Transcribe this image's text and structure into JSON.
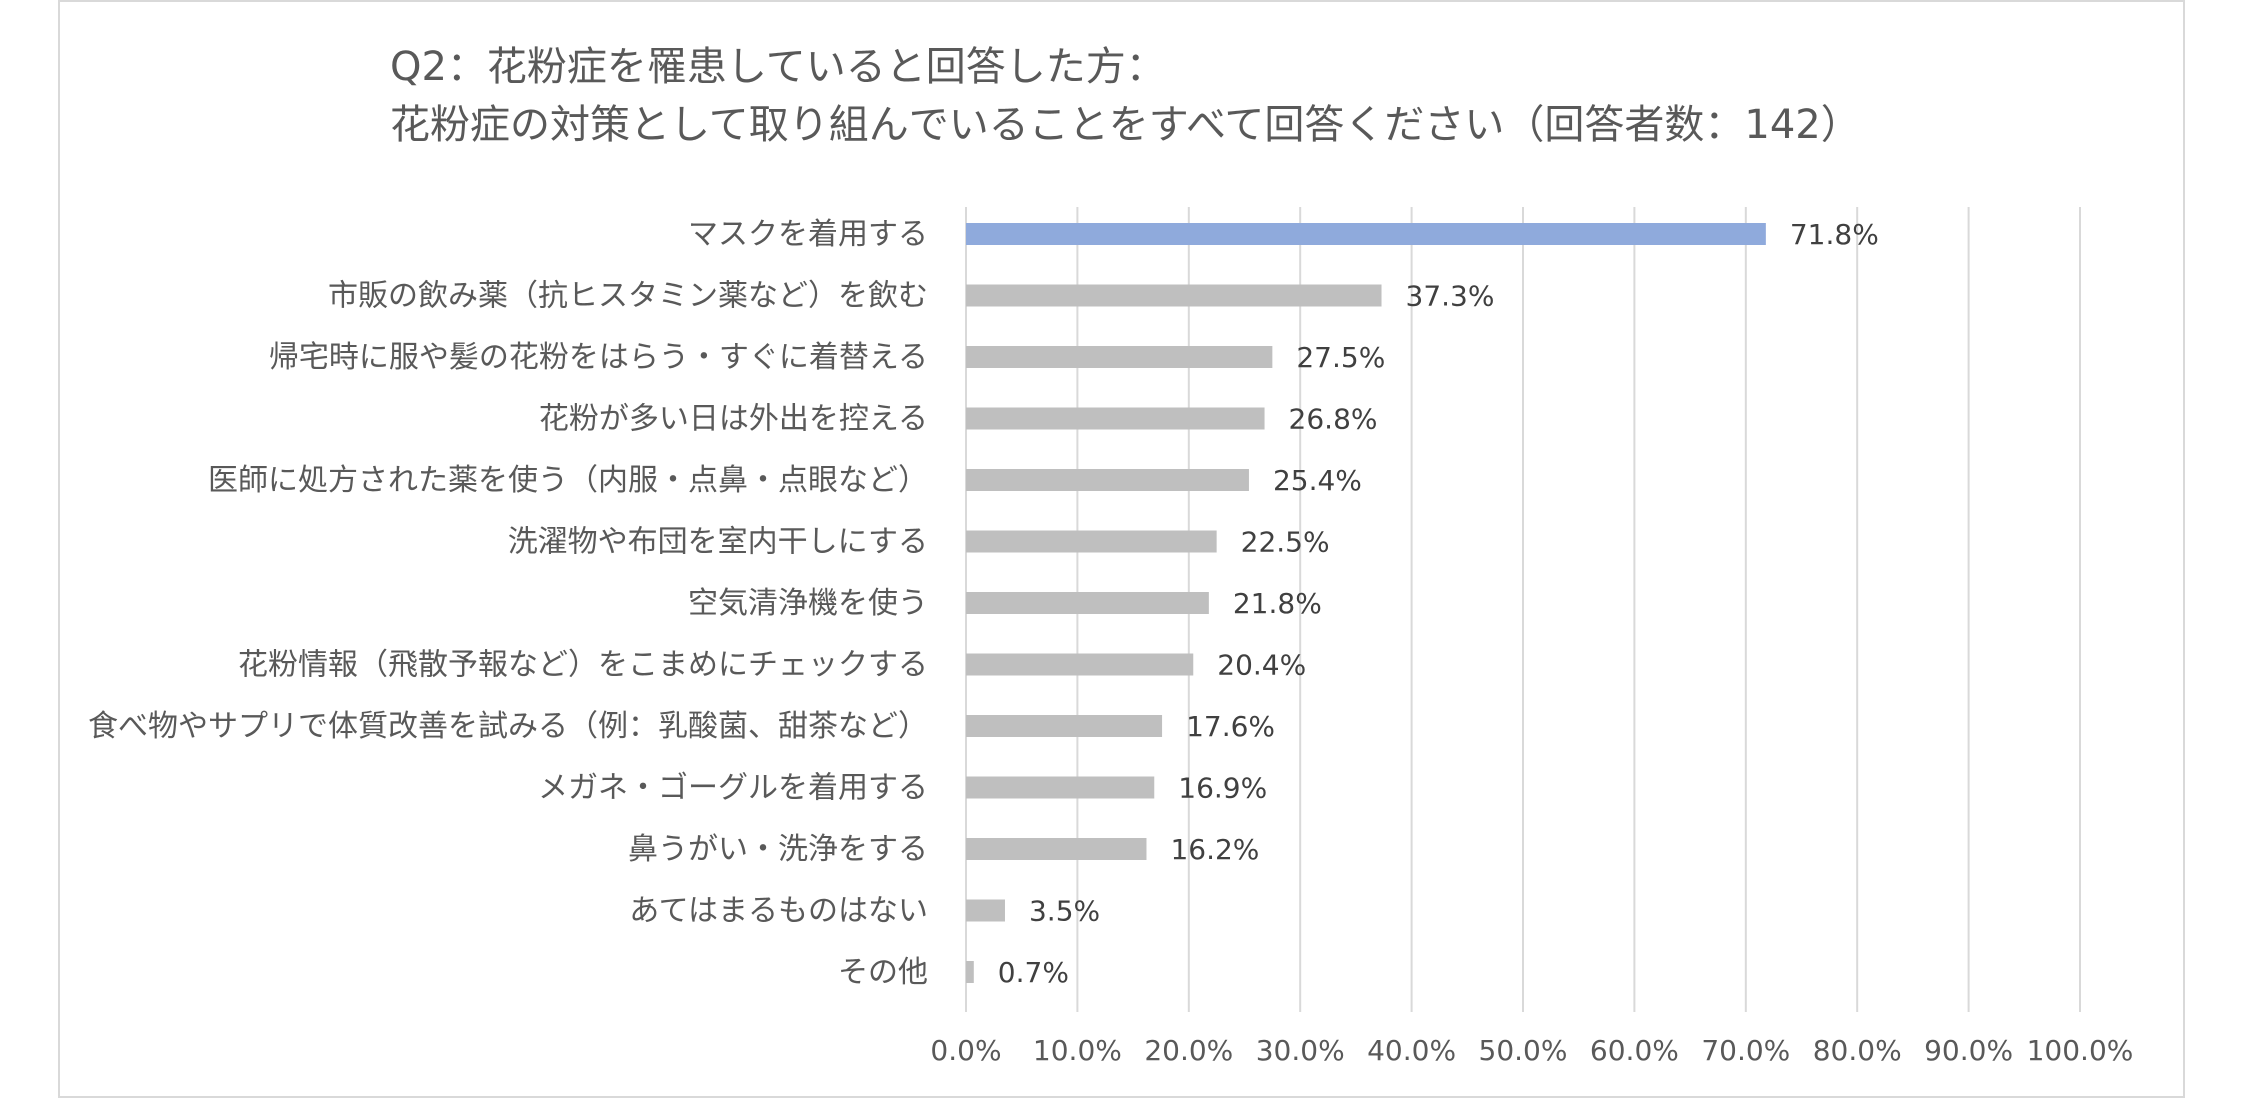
{
  "chart_data": {
    "type": "bar",
    "orientation": "horizontal",
    "title_lines": [
      "Q2：花粉症を罹患していると回答した方：",
      "花粉症の対策として取り組んでいることをすべて回答ください（回答者数：142）"
    ],
    "categories": [
      "マスクを着用する",
      "市販の飲み薬（抗ヒスタミン薬など）を飲む",
      "帰宅時に服や髪の花粉をはらう・すぐに着替える",
      "花粉が多い日は外出を控える",
      "医師に処方された薬を使う（内服・点鼻・点眼など）",
      "洗濯物や布団を室内干しにする",
      "空気清浄機を使う",
      "花粉情報（飛散予報など）をこまめにチェックする",
      "食べ物やサプリで体質改善を試みる（例：乳酸菌、甜茶など）",
      "メガネ・ゴーグルを着用する",
      "鼻うがい・洗浄をする",
      "あてはまるものはない",
      "その他"
    ],
    "values": [
      71.8,
      37.3,
      27.5,
      26.8,
      25.4,
      22.5,
      21.8,
      20.4,
      17.6,
      16.9,
      16.2,
      3.5,
      0.7
    ],
    "value_labels": [
      "71.8%",
      "37.3%",
      "27.5%",
      "26.8%",
      "25.4%",
      "22.5%",
      "21.8%",
      "20.4%",
      "17.6%",
      "16.9%",
      "16.2%",
      "3.5%",
      "0.7%"
    ],
    "xlim": [
      0,
      100
    ],
    "x_ticks": [
      "0.0%",
      "10.0%",
      "20.0%",
      "30.0%",
      "40.0%",
      "50.0%",
      "60.0%",
      "70.0%",
      "80.0%",
      "90.0%",
      "100.0%"
    ],
    "grid": true,
    "colors": {
      "highlight": "#8faadc",
      "default": "#bfbfbf",
      "grid": "#d9d9d9"
    }
  }
}
